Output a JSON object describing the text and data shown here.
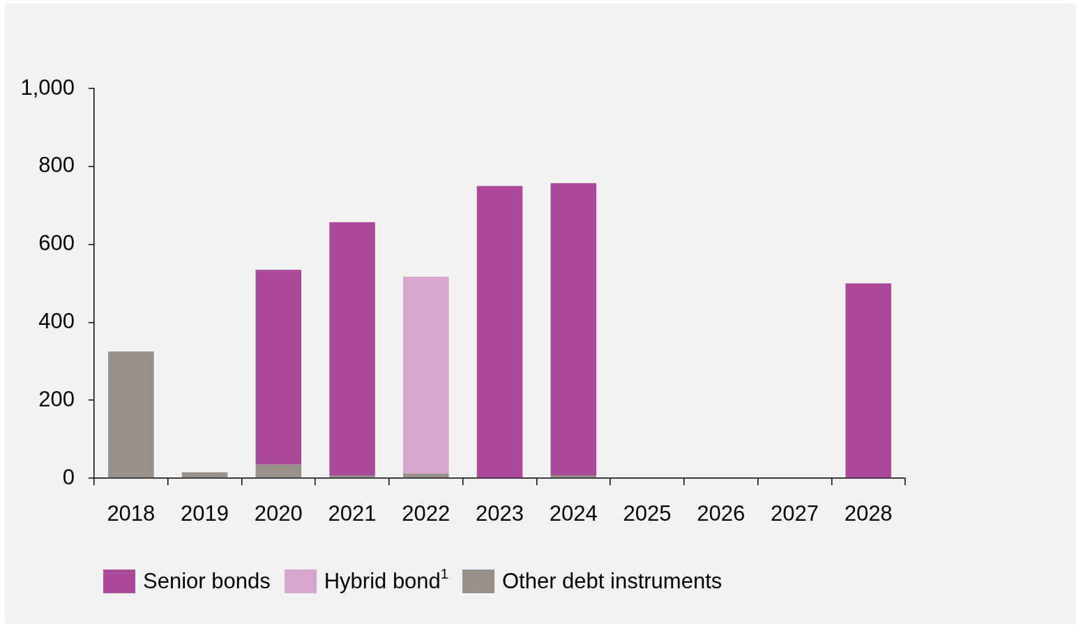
{
  "chart_data": {
    "type": "bar",
    "stacked": true,
    "categories": [
      "2018",
      "2019",
      "2020",
      "2021",
      "2022",
      "2023",
      "2024",
      "2025",
      "2026",
      "2027",
      "2028"
    ],
    "series": [
      {
        "name": "Other debt instruments",
        "color": "#978f88",
        "values": [
          325,
          15,
          35,
          7,
          12,
          null,
          7,
          null,
          null,
          null,
          null
        ]
      },
      {
        "name": "Hybrid bond$^{1}$",
        "color": "#d6a6cc",
        "values": [
          null,
          null,
          null,
          null,
          505,
          null,
          null,
          null,
          null,
          null,
          null
        ]
      },
      {
        "name": "Senior bonds",
        "color": "#ab4a9b",
        "values": [
          null,
          null,
          500,
          650,
          null,
          750,
          750,
          null,
          null,
          null,
          500
        ]
      }
    ],
    "ylim": [
      0,
      1000
    ],
    "yticks": [
      0,
      200,
      400,
      600,
      800,
      {
        "value": 1000,
        "label": "1,000"
      }
    ],
    "grid": false,
    "legend": "bottom"
  }
}
